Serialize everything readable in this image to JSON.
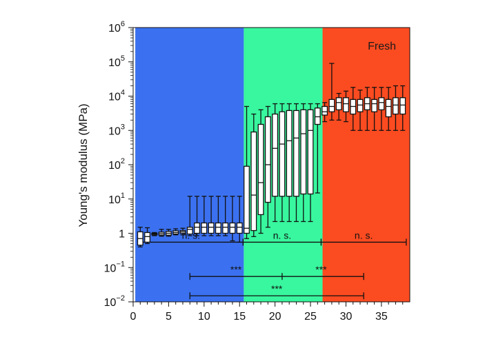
{
  "chart_data": {
    "type": "box",
    "xlabel": "",
    "ylabel": "Young's modulus (MPa)",
    "xlim": [
      0,
      39
    ],
    "ylim_log10": [
      -2,
      6
    ],
    "y_scale": "log",
    "x_ticks": [
      0,
      5,
      10,
      15,
      20,
      25,
      30,
      35
    ],
    "x_tick_labels": [
      "0",
      "5",
      "10",
      "15",
      "20",
      "25",
      "30",
      "35"
    ],
    "y_ticks": [
      {
        "label": "10",
        "exp": "−2",
        "value": 0.01
      },
      {
        "label": "10",
        "exp": "−1",
        "value": 0.1
      },
      {
        "label": "1",
        "exp": "",
        "value": 1
      },
      {
        "label": "10",
        "exp": "1",
        "value": 10
      },
      {
        "label": "10",
        "exp": "2",
        "value": 100
      },
      {
        "label": "10",
        "exp": "3",
        "value": 1000
      },
      {
        "label": "10",
        "exp": "4",
        "value": 10000
      },
      {
        "label": "10",
        "exp": "5",
        "value": 100000
      },
      {
        "label": "10",
        "exp": "6",
        "value": 1000000
      }
    ],
    "regions": [
      {
        "x_start": 0.3,
        "x_end": 15.6,
        "color": "#3b71f0"
      },
      {
        "x_start": 15.6,
        "x_end": 26.7,
        "color": "#38f79e"
      },
      {
        "x_start": 26.7,
        "x_end": 39.0,
        "color": "#fb4b20",
        "label": "Fresh"
      }
    ],
    "boxes": [
      {
        "x": 1,
        "whisker_low": 0.4,
        "q1": 0.45,
        "median": 0.7,
        "q3": 1.1,
        "whisker_high": 1.5
      },
      {
        "x": 2,
        "whisker_low": 0.5,
        "q1": 0.55,
        "median": 0.8,
        "q3": 1.05,
        "whisker_high": 1.45
      },
      {
        "x": 3,
        "whisker_low": 0.85,
        "q1": 0.9,
        "median": 0.95,
        "q3": 1.0,
        "whisker_high": 1.05
      },
      {
        "x": 4,
        "whisker_low": 0.82,
        "q1": 0.88,
        "median": 0.97,
        "q3": 1.08,
        "whisker_high": 1.3
      },
      {
        "x": 5,
        "whisker_low": 0.82,
        "q1": 0.88,
        "median": 1.0,
        "q3": 1.13,
        "whisker_high": 1.3
      },
      {
        "x": 6,
        "whisker_low": 0.9,
        "q1": 0.95,
        "median": 1.05,
        "q3": 1.18,
        "whisker_high": 1.35
      },
      {
        "x": 7,
        "whisker_low": 0.9,
        "q1": 1.0,
        "median": 1.1,
        "q3": 1.2,
        "whisker_high": 1.4
      },
      {
        "x": 8,
        "whisker_low": 0.85,
        "q1": 0.95,
        "median": 1.3,
        "q3": 1.5,
        "whisker_high": 12
      },
      {
        "x": 9,
        "whisker_low": 0.85,
        "q1": 1.0,
        "median": 1.5,
        "q3": 2.0,
        "whisker_high": 12
      },
      {
        "x": 10,
        "whisker_low": 0.85,
        "q1": 1.0,
        "median": 1.5,
        "q3": 2.0,
        "whisker_high": 12
      },
      {
        "x": 11,
        "whisker_low": 0.85,
        "q1": 1.0,
        "median": 1.5,
        "q3": 2.0,
        "whisker_high": 12
      },
      {
        "x": 12,
        "whisker_low": 0.85,
        "q1": 1.0,
        "median": 1.5,
        "q3": 2.0,
        "whisker_high": 12
      },
      {
        "x": 13,
        "whisker_low": 0.85,
        "q1": 1.0,
        "median": 1.5,
        "q3": 2.0,
        "whisker_high": 12
      },
      {
        "x": 14,
        "whisker_low": 0.6,
        "q1": 1.0,
        "median": 1.5,
        "q3": 2.0,
        "whisker_high": 12
      },
      {
        "x": 15,
        "whisker_low": 0.55,
        "q1": 1.0,
        "median": 1.5,
        "q3": 2.0,
        "whisker_high": 12
      },
      {
        "x": 16,
        "whisker_low": 0.7,
        "q1": 1.0,
        "median": 1.4,
        "q3": 90,
        "whisker_high": 5000
      },
      {
        "x": 17,
        "whisker_low": 0.8,
        "q1": 1.2,
        "median": 13,
        "q3": 900,
        "whisker_high": 3000
      },
      {
        "x": 18,
        "whisker_low": 1.0,
        "q1": 3.5,
        "median": 30,
        "q3": 1500,
        "whisker_high": 4000
      },
      {
        "x": 19,
        "whisker_low": 1.5,
        "q1": 8,
        "median": 100,
        "q3": 2500,
        "whisker_high": 5000
      },
      {
        "x": 20,
        "whisker_low": 2.2,
        "q1": 12,
        "median": 300,
        "q3": 3000,
        "whisker_high": 6000
      },
      {
        "x": 21,
        "whisker_low": 2.2,
        "q1": 12,
        "median": 400,
        "q3": 3500,
        "whisker_high": 6000
      },
      {
        "x": 22,
        "whisker_low": 2.2,
        "q1": 12,
        "median": 500,
        "q3": 3800,
        "whisker_high": 6000
      },
      {
        "x": 23,
        "whisker_low": 2.2,
        "q1": 12,
        "median": 600,
        "q3": 3800,
        "whisker_high": 6000
      },
      {
        "x": 24,
        "whisker_low": 2.2,
        "q1": 14,
        "median": 800,
        "q3": 4000,
        "whisker_high": 6000
      },
      {
        "x": 25,
        "whisker_low": 2.2,
        "q1": 14,
        "median": 1000,
        "q3": 4000,
        "whisker_high": 6000
      },
      {
        "x": 26,
        "whisker_low": 15,
        "q1": 1500,
        "median": 2500,
        "q3": 4500,
        "whisker_high": 6000
      },
      {
        "x": 27,
        "whisker_low": 1800,
        "q1": 2800,
        "median": 3500,
        "q3": 5000,
        "whisker_high": 6500
      },
      {
        "x": 28,
        "whisker_low": 2000,
        "q1": 3500,
        "median": 5000,
        "q3": 8000,
        "whisker_high": 90000
      },
      {
        "x": 29,
        "whisker_low": 2000,
        "q1": 4000,
        "median": 6500,
        "q3": 9000,
        "whisker_high": 12000
      },
      {
        "x": 30,
        "whisker_low": 1800,
        "q1": 3500,
        "median": 6000,
        "q3": 9000,
        "whisker_high": 14000
      },
      {
        "x": 31,
        "whisker_low": 1000,
        "q1": 3000,
        "median": 5000,
        "q3": 8000,
        "whisker_high": 18000
      },
      {
        "x": 32,
        "whisker_low": 1000,
        "q1": 3500,
        "median": 5500,
        "q3": 8000,
        "whisker_high": 15000
      },
      {
        "x": 33,
        "whisker_low": 1000,
        "q1": 4000,
        "median": 6000,
        "q3": 9000,
        "whisker_high": 18000
      },
      {
        "x": 34,
        "whisker_low": 1000,
        "q1": 3500,
        "median": 6000,
        "q3": 8000,
        "whisker_high": 18000
      },
      {
        "x": 35,
        "whisker_low": 1000,
        "q1": 4000,
        "median": 6500,
        "q3": 9000,
        "whisker_high": 18000
      },
      {
        "x": 36,
        "whisker_low": 1000,
        "q1": 2500,
        "median": 5000,
        "q3": 8000,
        "whisker_high": 18000
      },
      {
        "x": 37,
        "whisker_low": 1000,
        "q1": 3000,
        "median": 5500,
        "q3": 9000,
        "whisker_high": 20000
      },
      {
        "x": 38,
        "whisker_low": 1000,
        "q1": 3000,
        "median": 5500,
        "q3": 9000,
        "whisker_high": 20000
      }
    ],
    "comparisons": [
      {
        "x_start": 0.8,
        "x_end": 15.5,
        "x_tick": null,
        "y": 0.55,
        "label": "n. s."
      },
      {
        "x_start": 15.5,
        "x_end": 26.5,
        "x_tick": null,
        "y": 0.55,
        "label": "n. s."
      },
      {
        "x_start": 26.5,
        "x_end": 38.5,
        "x_tick": null,
        "y": 0.55,
        "label": "n. s."
      },
      {
        "x_start": 8,
        "x_end": 32.5,
        "x_tick": 21,
        "y": 0.055,
        "label": "***",
        "label_x": [
          14.5,
          26.5
        ]
      },
      {
        "x_start": 8,
        "x_end": 32.5,
        "x_tick": null,
        "y": 0.015,
        "label": "***"
      }
    ]
  }
}
